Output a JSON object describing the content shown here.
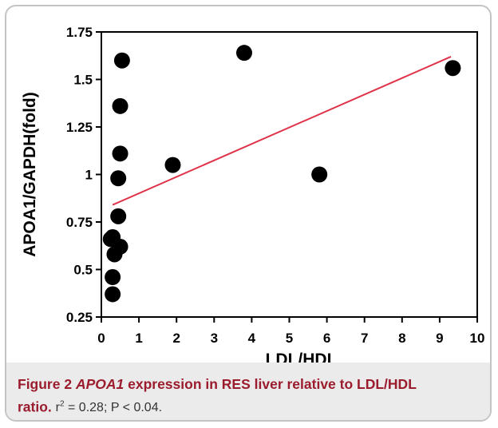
{
  "chart_data": {
    "type": "scatter",
    "title": "",
    "xlabel": "LDL/HDL",
    "ylabel": "APOA1/GAPDH(fold)",
    "xlim": [
      0,
      10
    ],
    "ylim": [
      0.25,
      1.75
    ],
    "x_ticks": [
      0,
      1,
      2,
      3,
      4,
      5,
      6,
      7,
      8,
      9,
      10
    ],
    "y_ticks": [
      0.25,
      0.5,
      0.75,
      1,
      1.25,
      1.5,
      1.75
    ],
    "x_tick_labels": [
      "0",
      "1",
      "2",
      "3",
      "4",
      "5",
      "6",
      "7",
      "8",
      "9",
      "10"
    ],
    "y_tick_labels": [
      "0.25",
      "0.5",
      "0.75",
      "1",
      "1.25",
      "1.5",
      "1.75"
    ],
    "grid": false,
    "points": [
      {
        "x": 0.55,
        "y": 1.6
      },
      {
        "x": 0.5,
        "y": 1.36
      },
      {
        "x": 0.5,
        "y": 1.11
      },
      {
        "x": 0.45,
        "y": 0.98
      },
      {
        "x": 0.45,
        "y": 0.78
      },
      {
        "x": 0.3,
        "y": 0.67
      },
      {
        "x": 0.25,
        "y": 0.66
      },
      {
        "x": 0.5,
        "y": 0.62
      },
      {
        "x": 0.35,
        "y": 0.58
      },
      {
        "x": 0.3,
        "y": 0.46
      },
      {
        "x": 0.3,
        "y": 0.37
      },
      {
        "x": 1.9,
        "y": 1.05
      },
      {
        "x": 3.8,
        "y": 1.64
      },
      {
        "x": 5.8,
        "y": 1.0
      },
      {
        "x": 9.35,
        "y": 1.56
      }
    ],
    "trendline": {
      "x": [
        0.3,
        9.3
      ],
      "y": [
        0.84,
        1.62
      ],
      "color": "#e0334a"
    },
    "marker_color": "#000000"
  },
  "caption": {
    "label": "Figure 2",
    "gene": "APOA1",
    "text_part1": " expression in RES liver relative to LDL/HDL",
    "text_part2": "ratio.",
    "stats_r": "r",
    "stats_exp": "2",
    "stats_rest": " = 0.28; P < 0.04."
  }
}
